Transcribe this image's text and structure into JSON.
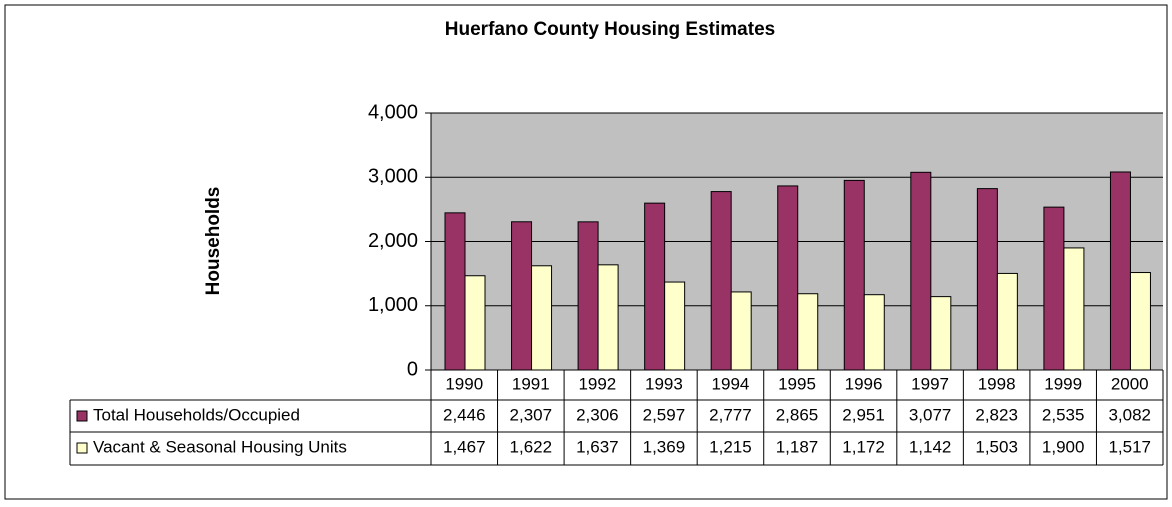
{
  "chart_data": {
    "type": "bar",
    "title": "Huerfano County Housing Estimates",
    "y_label": "Households",
    "categories": [
      "1990",
      "1991",
      "1992",
      "1993",
      "1994",
      "1995",
      "1996",
      "1997",
      "1998",
      "1999",
      "2000"
    ],
    "series": [
      {
        "name": "Total Households/Occupied",
        "color": "#993366",
        "values": [
          2446,
          2307,
          2306,
          2597,
          2777,
          2865,
          2951,
          3077,
          2823,
          2535,
          3082
        ],
        "value_labels": [
          "2,446",
          "2,307",
          "2,306",
          "2,597",
          "2,777",
          "2,865",
          "2,951",
          "3,077",
          "2,823",
          "2,535",
          "3,082"
        ]
      },
      {
        "name": "Vacant & Seasonal Housing Units",
        "color": "#ffffcc",
        "values": [
          1467,
          1622,
          1637,
          1369,
          1215,
          1187,
          1172,
          1142,
          1503,
          1900,
          1517
        ],
        "value_labels": [
          "1,467",
          "1,622",
          "1,637",
          "1,369",
          "1,215",
          "1,187",
          "1,172",
          "1,142",
          "1,503",
          "1,900",
          "1,517"
        ]
      }
    ],
    "ylim": [
      0,
      4000
    ],
    "yticks": [
      0,
      {
        "value": 1000,
        "label": "1,000"
      },
      {
        "value": 2000,
        "label": "2,000"
      },
      {
        "value": 3000,
        "label": "3,000"
      },
      {
        "value": 4000,
        "label": "4,000"
      }
    ],
    "grid": true,
    "plot_background": "#c0c0c0"
  }
}
